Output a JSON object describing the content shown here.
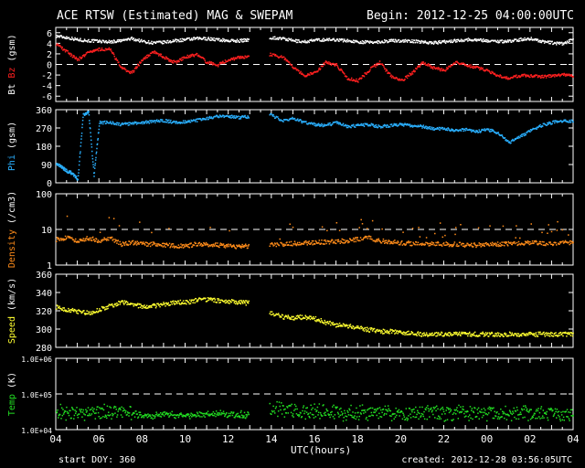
{
  "header": {
    "title": "ACE RTSW (Estimated) MAG & SWEPAM",
    "begin": "Begin: 2012-12-25 04:00:00UTC"
  },
  "footer": {
    "xlabel": "UTC(hours)",
    "start_doy": "start DOY: 360",
    "created": "created: 2012-12-28 03:56:05UTC"
  },
  "colors": {
    "bt": "#ffffff",
    "bz": "#ff2020",
    "phi": "#2ab0ff",
    "density": "#ff8c1a",
    "speed": "#ffff30",
    "temp": "#22dd22",
    "frame": "#ffffff",
    "background": "#000000"
  },
  "chart_data": [
    {
      "type": "scatter",
      "panel": "mag",
      "title": "ACE RTSW (Estimated) MAG & SWEPAM",
      "xlabel": "UTC(hours)",
      "ylabel_parts": [
        "Bt",
        "Bz",
        "(gsm)"
      ],
      "x_ticks": [
        "04",
        "06",
        "08",
        "10",
        "12",
        "14",
        "16",
        "18",
        "20",
        "22",
        "00",
        "02",
        "04"
      ],
      "xlim_hours": [
        0,
        48
      ],
      "ylim": [
        -7,
        7
      ],
      "y_ticks": [
        "6",
        "4",
        "2",
        "0",
        "-2",
        "-4",
        "-6"
      ],
      "y_tick_values": [
        6,
        4,
        2,
        0,
        -2,
        -4,
        -6
      ],
      "dashed_reference": 0,
      "data_gap_hours": [
        17.9,
        19.8
      ],
      "series": [
        {
          "name": "Bt",
          "color": "#ffffff",
          "x": [
            0,
            1,
            2,
            3,
            4,
            5,
            6,
            7,
            8,
            9,
            10,
            11,
            12,
            13,
            14,
            15,
            16,
            17,
            17.9,
            19.8,
            21,
            22,
            23,
            24,
            25,
            26,
            27,
            28,
            29,
            30,
            31,
            32,
            33,
            34,
            35,
            36,
            37,
            38,
            39,
            40,
            41,
            42,
            43,
            44,
            45,
            46,
            47,
            48
          ],
          "y": [
            5.5,
            5.2,
            4.8,
            4.6,
            4.5,
            4.4,
            4.6,
            5.0,
            4.5,
            4.2,
            4.3,
            4.6,
            4.8,
            5.0,
            5.0,
            4.8,
            4.6,
            4.6,
            4.8,
            5.2,
            5.0,
            4.6,
            4.4,
            4.7,
            4.8,
            4.8,
            4.6,
            4.4,
            4.3,
            4.4,
            4.6,
            4.6,
            4.5,
            4.4,
            4.2,
            4.4,
            4.6,
            4.8,
            4.8,
            4.6,
            4.5,
            4.5,
            4.8,
            5.0,
            4.5,
            4.2,
            4.0,
            5.0
          ]
        },
        {
          "name": "Bz",
          "color": "#ff2020",
          "x": [
            0,
            1,
            2,
            3,
            4,
            5,
            6,
            7,
            8,
            9,
            10,
            11,
            12,
            13,
            14,
            15,
            16,
            17,
            17.9,
            19.8,
            21,
            22,
            23,
            24,
            25,
            26,
            27,
            28,
            29,
            30,
            31,
            32,
            33,
            34,
            35,
            36,
            37,
            38,
            39,
            40,
            41,
            42,
            43,
            44,
            45,
            46,
            47,
            48
          ],
          "y": [
            4.0,
            2.5,
            1.0,
            2.5,
            3.0,
            3.0,
            -0.5,
            -1.5,
            1.0,
            2.5,
            1.5,
            0.5,
            1.5,
            2.0,
            0.5,
            0.0,
            1.0,
            1.5,
            1.5,
            2.0,
            1.5,
            -0.5,
            -2.0,
            -1.5,
            0.5,
            0.0,
            -2.5,
            -3.0,
            -1.0,
            0.5,
            -2.0,
            -3.0,
            -1.5,
            0.5,
            -0.5,
            -1.0,
            0.5,
            0.0,
            -0.5,
            -1.0,
            -2.0,
            -2.5,
            -2.0,
            -2.0,
            -2.2,
            -2.0,
            -1.8,
            -2.0
          ]
        }
      ]
    },
    {
      "type": "scatter",
      "panel": "phi",
      "ylabel": "Phi (gsm)",
      "xlim_hours": [
        0,
        48
      ],
      "ylim": [
        0,
        360
      ],
      "y_ticks": [
        "360",
        "270",
        "180",
        "90",
        "0"
      ],
      "y_tick_values": [
        360,
        270,
        180,
        90,
        0
      ],
      "series": [
        {
          "name": "Phi",
          "color": "#2ab0ff",
          "x": [
            0,
            0.5,
            1,
            1.5,
            2,
            2.5,
            3,
            3.5,
            4,
            5,
            6,
            7,
            8,
            9,
            10,
            11,
            12,
            13,
            14,
            15,
            16,
            17,
            17.9,
            19.8,
            21,
            22,
            23,
            24,
            25,
            26,
            27,
            28,
            29,
            30,
            31,
            32,
            33,
            34,
            35,
            36,
            37,
            38,
            39,
            40,
            41,
            42,
            43,
            44,
            45,
            46,
            47,
            48
          ],
          "y": [
            100,
            80,
            60,
            50,
            20,
            340,
            350,
            40,
            300,
            300,
            290,
            295,
            300,
            305,
            310,
            300,
            305,
            310,
            320,
            330,
            330,
            325,
            330,
            340,
            310,
            320,
            300,
            290,
            285,
            300,
            280,
            285,
            290,
            280,
            285,
            290,
            285,
            280,
            270,
            270,
            260,
            265,
            255,
            265,
            250,
            200,
            230,
            260,
            285,
            300,
            310,
            305
          ]
        }
      ]
    },
    {
      "type": "scatter",
      "panel": "density",
      "ylabel": "Density (/cm3)",
      "xlim_hours": [
        0,
        48
      ],
      "ylim": [
        1,
        100
      ],
      "y_scale": "log",
      "y_ticks": [
        "100",
        "10",
        "1"
      ],
      "y_tick_values": [
        100,
        10,
        1
      ],
      "dashed_reference": 10,
      "series": [
        {
          "name": "Density",
          "color": "#ff8c1a",
          "x": [
            0,
            1,
            2,
            3,
            4,
            5,
            6,
            7,
            8,
            9,
            10,
            11,
            12,
            13,
            14,
            15,
            16,
            17,
            17.9,
            19.8,
            21,
            22,
            23,
            24,
            25,
            26,
            27,
            28,
            29,
            30,
            31,
            32,
            33,
            34,
            35,
            36,
            37,
            38,
            39,
            40,
            41,
            42,
            43,
            44,
            45,
            46,
            47,
            48
          ],
          "y": [
            5.5,
            6,
            5,
            6,
            5,
            6,
            4,
            4.5,
            4,
            4,
            3.8,
            3.6,
            3.6,
            4,
            4,
            3.8,
            3.5,
            3.4,
            3.6,
            4,
            4,
            4.2,
            4.4,
            4.5,
            4.6,
            4.8,
            5,
            5.5,
            6,
            5,
            4.6,
            4.4,
            4.2,
            4,
            4.2,
            4,
            4,
            3.8,
            3.8,
            4,
            4,
            4.2,
            4.2,
            4.4,
            4.3,
            4.2,
            4.4,
            4.5
          ]
        }
      ]
    },
    {
      "type": "scatter",
      "panel": "speed",
      "ylabel": "Speed (km/s)",
      "xlim_hours": [
        0,
        48
      ],
      "ylim": [
        280,
        360
      ],
      "y_ticks": [
        "360",
        "340",
        "320",
        "300",
        "280"
      ],
      "y_tick_values": [
        360,
        340,
        320,
        300,
        280
      ],
      "series": [
        {
          "name": "Speed",
          "color": "#ffff30",
          "x": [
            0,
            1,
            2,
            3,
            4,
            5,
            6,
            7,
            8,
            9,
            10,
            11,
            12,
            13,
            14,
            15,
            16,
            17,
            17.9,
            19.8,
            21,
            22,
            23,
            24,
            25,
            26,
            27,
            28,
            29,
            30,
            31,
            32,
            33,
            34,
            35,
            36,
            37,
            38,
            39,
            40,
            41,
            42,
            43,
            44,
            45,
            46,
            47,
            48
          ],
          "y": [
            325,
            322,
            320,
            318,
            322,
            326,
            330,
            328,
            325,
            326,
            328,
            330,
            330,
            332,
            333,
            332,
            331,
            330,
            329,
            318,
            314,
            313,
            314,
            312,
            308,
            305,
            304,
            302,
            300,
            298,
            298,
            297,
            296,
            295,
            295,
            295,
            295,
            295,
            295,
            295,
            295,
            295,
            295,
            295,
            295,
            295,
            295,
            295
          ]
        }
      ]
    },
    {
      "type": "scatter",
      "panel": "temp",
      "ylabel": "Temp (K)",
      "xlim_hours": [
        0,
        48
      ],
      "ylim": [
        10000,
        1000000
      ],
      "y_scale": "log",
      "y_ticks": [
        "1.0E+06",
        "1.0E+05",
        "1.0E+04"
      ],
      "y_tick_values": [
        1000000,
        100000,
        10000
      ],
      "dashed_reference": 100000,
      "series": [
        {
          "name": "Temp",
          "color": "#22dd22",
          "x": [
            0,
            1,
            2,
            3,
            4,
            5,
            6,
            7,
            8,
            9,
            10,
            11,
            12,
            13,
            14,
            15,
            16,
            17,
            17.9,
            19.8,
            21,
            22,
            23,
            24,
            25,
            26,
            27,
            28,
            29,
            30,
            31,
            32,
            33,
            34,
            35,
            36,
            37,
            38,
            39,
            40,
            41,
            42,
            43,
            44,
            45,
            46,
            47,
            48
          ],
          "y": [
            35000,
            30000,
            32000,
            30000,
            31000,
            33000,
            34000,
            30000,
            26000,
            26000,
            27000,
            27000,
            27000,
            28000,
            28000,
            28000,
            28000,
            27000,
            27500,
            40000,
            38000,
            36000,
            34000,
            33000,
            32000,
            31000,
            31000,
            30000,
            30000,
            30000,
            30000,
            30000,
            30000,
            30000,
            30000,
            30000,
            30000,
            30000,
            30000,
            30000,
            30000,
            30000,
            30000,
            30000,
            30000,
            30000,
            30000,
            30000
          ]
        }
      ]
    }
  ]
}
